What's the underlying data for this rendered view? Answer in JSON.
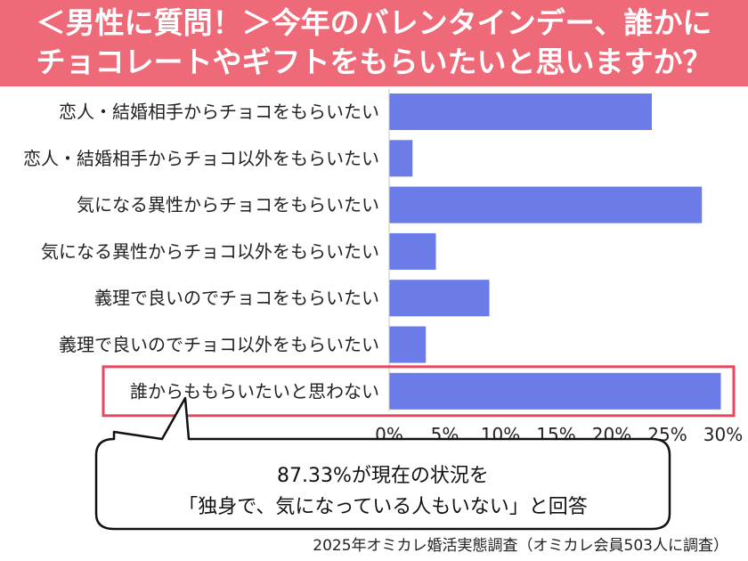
{
  "header": {
    "title_line1": "＜男性に質問！＞今年のバレンタインデー、誰かに",
    "title_line2": "チョコレートやギフトをもらいたいと思いますか？"
  },
  "chart_data": {
    "type": "bar",
    "orientation": "horizontal",
    "categories": [
      "恋人・結婚相手からチョコをもらいたい",
      "恋人・結婚相手からチョコ以外をもらいたい",
      "気になる異性からチョコをもらいたい",
      "気になる異性からチョコ以外をもらいたい",
      "義理で良いのでチョコをもらいたい",
      "義理で良いのでチョコ以外をもらいたい",
      "誰からももらいたいと思わない"
    ],
    "values": [
      23.6,
      2.1,
      28.1,
      4.2,
      9.0,
      3.3,
      29.8
    ],
    "unit": "%",
    "xlim": [
      0,
      30
    ],
    "xticks": [
      "0%",
      "5%",
      "10%",
      "15%",
      "20%",
      "25%",
      "30%"
    ],
    "highlight_index": 6,
    "bar_color": "#6b7be8",
    "highlight_color": "#e8475c",
    "grid": false
  },
  "callout": {
    "line1": "87.33%が現在の状況を",
    "line2": "「独身で、気になっている人もいない」と回答"
  },
  "source": "2025年オミカレ婚活実態調査（オミカレ会員503人に調査）",
  "colors": {
    "header_bg": "#ef6a78",
    "bar": "#6b7be8",
    "highlight_border": "#e8475c"
  }
}
